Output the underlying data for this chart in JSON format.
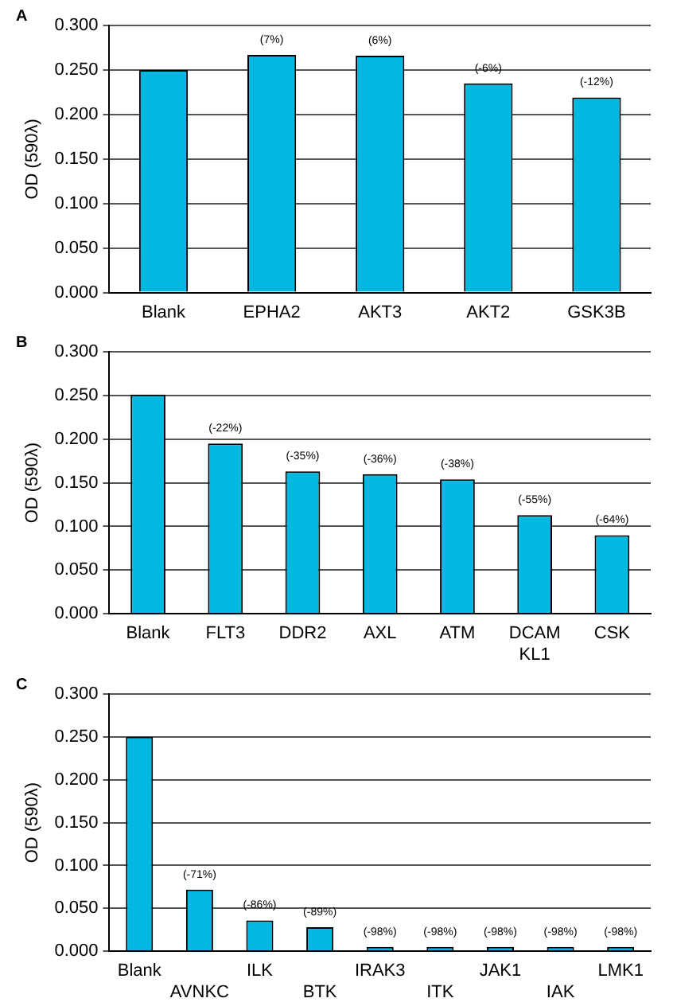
{
  "chart_data": [
    {
      "type": "bar",
      "title": "A",
      "ylabel": "OD (590λ)",
      "categories": [
        "Blank",
        "EPHA2",
        "AKT3",
        "AKT2",
        "GSK3B"
      ],
      "values": [
        0.25,
        0.267,
        0.266,
        0.235,
        0.219
      ],
      "color": "#00b8e0",
      "annotations": [
        {
          "text": "(7%)",
          "x": "EPHA2",
          "y": 0.267
        },
        {
          "text": "(6%)",
          "x": "AKT3",
          "y": 0.266
        },
        {
          "text": "(-6%)",
          "x": "AKT2",
          "y": 0.235
        },
        {
          "text": "(-12%)",
          "x": "GSK3B",
          "y": 0.219
        }
      ],
      "ylim": [
        0,
        0.3
      ],
      "yticks": [
        {
          "value": 0,
          "label": "0.000"
        },
        {
          "value": 0.05,
          "label": "0.050"
        },
        {
          "value": 0.1,
          "label": "0.100"
        },
        {
          "value": 0.15,
          "label": "0.150"
        },
        {
          "value": 0.2,
          "label": "0.200"
        },
        {
          "value": 0.25,
          "label": "0.250"
        },
        {
          "value": 0.3,
          "label": "0.300"
        }
      ],
      "grid": "y",
      "legend": false
    },
    {
      "type": "bar",
      "title": "B",
      "ylabel": "OD (590λ)",
      "categories": [
        "Blank",
        "FLT3",
        "DDR2",
        "AXL",
        "ATM",
        "DCAM KL1",
        "CSK"
      ],
      "values": [
        0.251,
        0.195,
        0.163,
        0.16,
        0.154,
        0.113,
        0.09
      ],
      "color": "#00b8e0",
      "annotations": [
        {
          "text": "(-22%)",
          "x": "FLT3",
          "y": 0.195
        },
        {
          "text": "(-35%)",
          "x": "DDR2",
          "y": 0.163
        },
        {
          "text": "(-36%)",
          "x": "AXL",
          "y": 0.16
        },
        {
          "text": "(-38%)",
          "x": "ATM",
          "y": 0.154
        },
        {
          "text": "(-55%)",
          "x": "DCAM KL1",
          "y": 0.113
        },
        {
          "text": "(-64%)",
          "x": "CSK",
          "y": 0.09
        }
      ],
      "ylim": [
        0,
        0.3
      ],
      "yticks": [
        {
          "value": 0,
          "label": "0.000"
        },
        {
          "value": 0.05,
          "label": "0.050"
        },
        {
          "value": 0.1,
          "label": "0.100"
        },
        {
          "value": 0.15,
          "label": "0.150"
        },
        {
          "value": 0.2,
          "label": "0.200"
        },
        {
          "value": 0.25,
          "label": "0.250"
        },
        {
          "value": 0.3,
          "label": "0.300"
        }
      ],
      "grid": "y",
      "legend": false
    },
    {
      "type": "bar",
      "title": "C",
      "ylabel": "OD (590λ)",
      "categories": [
        "Blank",
        "AVNKC",
        "ILK",
        "BTK",
        "IRAK3",
        "ITK",
        "JAK1",
        "IAK",
        "LMK1"
      ],
      "values": [
        0.25,
        0.072,
        0.036,
        0.028,
        0.005,
        0.005,
        0.005,
        0.005,
        0.005
      ],
      "color": "#00b8e0",
      "annotations": [
        {
          "text": "(-71%)",
          "x": "AVNKC",
          "y": 0.072
        },
        {
          "text": "(-86%)",
          "x": "ILK",
          "y": 0.036
        },
        {
          "text": "(-89%)",
          "x": "BTK",
          "y": 0.028
        },
        {
          "text": "(-98%)",
          "x": "IRAK3",
          "y": 0.005
        },
        {
          "text": "(-98%)",
          "x": "ITK",
          "y": 0.005
        },
        {
          "text": "(-98%)",
          "x": "JAK1",
          "y": 0.005
        },
        {
          "text": "(-98%)",
          "x": "IAK",
          "y": 0.005
        },
        {
          "text": "(-98%)",
          "x": "LMK1",
          "y": 0.005
        }
      ],
      "ylim": [
        0,
        0.3
      ],
      "yticks": [
        {
          "value": 0,
          "label": "0.000"
        },
        {
          "value": 0.05,
          "label": "0.050"
        },
        {
          "value": 0.1,
          "label": "0.100"
        },
        {
          "value": 0.15,
          "label": "0.150"
        },
        {
          "value": 0.2,
          "label": "0.200"
        },
        {
          "value": 0.25,
          "label": "0.250"
        },
        {
          "value": 0.3,
          "label": "0.300"
        }
      ],
      "grid": "y",
      "legend": false
    }
  ]
}
